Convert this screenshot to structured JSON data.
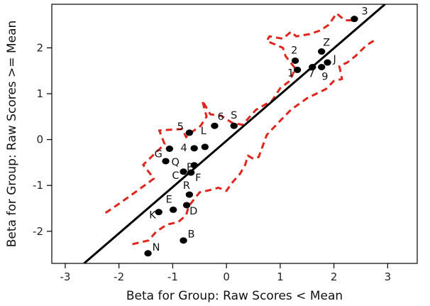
{
  "chart_data": {
    "type": "scatter",
    "xlabel": "Beta for Group: Raw Scores < Mean",
    "ylabel": "Beta for Group: Raw Scores >= Mean",
    "xlim": [
      -3.25,
      3.55
    ],
    "ylim": [
      -2.7,
      2.95
    ],
    "x_ticks": [
      -3,
      -2,
      -1,
      0,
      1,
      2,
      3
    ],
    "y_ticks": [
      -2,
      -1,
      0,
      1,
      2
    ],
    "grid": false,
    "legend": "none",
    "colors": {
      "points": "#000000",
      "fit_line": "#000000",
      "bounds": "#e0261c"
    },
    "points": [
      {
        "label": "3",
        "x": 2.38,
        "y": 2.63
      },
      {
        "label": "Z",
        "x": 1.77,
        "y": 1.92
      },
      {
        "label": "J",
        "x": 1.88,
        "y": 1.68
      },
      {
        "label": "2",
        "x": 1.28,
        "y": 1.72
      },
      {
        "label": "1",
        "x": 1.32,
        "y": 1.52
      },
      {
        "label": "7",
        "x": 1.6,
        "y": 1.58
      },
      {
        "label": "9",
        "x": 1.77,
        "y": 1.58
      },
      {
        "label": "6",
        "x": -0.22,
        "y": 0.3
      },
      {
        "label": "S",
        "x": 0.14,
        "y": 0.3
      },
      {
        "label": "5",
        "x": -0.69,
        "y": 0.15
      },
      {
        "label": "L",
        "x": -0.4,
        "y": -0.16
      },
      {
        "label": "4",
        "x": -0.6,
        "y": -0.19
      },
      {
        "label": "G",
        "x": -1.06,
        "y": -0.2
      },
      {
        "label": "Q",
        "x": -1.13,
        "y": -0.47
      },
      {
        "label": "P",
        "x": -0.6,
        "y": -0.56
      },
      {
        "label": "C",
        "x": -0.8,
        "y": -0.7
      },
      {
        "label": "F",
        "x": -0.66,
        "y": -0.72
      },
      {
        "label": "R",
        "x": -0.69,
        "y": -1.2
      },
      {
        "label": "E",
        "x": -0.99,
        "y": -1.53
      },
      {
        "label": "D",
        "x": -0.74,
        "y": -1.43
      },
      {
        "label": "K",
        "x": -1.26,
        "y": -1.58
      },
      {
        "label": "B",
        "x": -0.8,
        "y": -2.2
      },
      {
        "label": "N",
        "x": -1.46,
        "y": -2.48
      }
    ],
    "fit_line": [
      [
        -2.65,
        -2.7
      ],
      [
        2.95,
        2.95
      ]
    ],
    "upper_bound": [
      [
        -2.25,
        -1.6
      ],
      [
        -2.0,
        -1.4
      ],
      [
        -1.7,
        -1.15
      ],
      [
        -1.35,
        -0.85
      ],
      [
        -1.55,
        -0.55
      ],
      [
        -1.15,
        -0.1
      ],
      [
        -1.25,
        0.2
      ],
      [
        -0.82,
        0.23
      ],
      [
        -0.75,
        0.05
      ],
      [
        -0.72,
        0.1
      ],
      [
        -0.48,
        0.3
      ],
      [
        -0.37,
        0.5
      ],
      [
        -0.45,
        0.85
      ],
      [
        -0.3,
        0.55
      ],
      [
        -0.1,
        0.52
      ],
      [
        0.1,
        0.37
      ],
      [
        0.3,
        0.32
      ],
      [
        0.55,
        0.65
      ],
      [
        0.85,
        0.85
      ],
      [
        1.0,
        1.12
      ],
      [
        1.18,
        1.28
      ],
      [
        1.28,
        1.55
      ],
      [
        1.1,
        1.82
      ],
      [
        1.05,
        2.0
      ],
      [
        0.75,
        2.15
      ],
      [
        0.8,
        2.25
      ],
      [
        1.05,
        2.2
      ],
      [
        1.2,
        2.35
      ],
      [
        1.3,
        2.25
      ],
      [
        1.55,
        2.3
      ],
      [
        1.75,
        2.38
      ],
      [
        1.9,
        2.5
      ],
      [
        2.05,
        2.75
      ],
      [
        2.2,
        2.6
      ],
      [
        2.4,
        2.6
      ]
    ],
    "lower_bound": [
      [
        -1.75,
        -2.28
      ],
      [
        -1.45,
        -2.2
      ],
      [
        -1.3,
        -2.0
      ],
      [
        -1.1,
        -1.85
      ],
      [
        -0.9,
        -1.8
      ],
      [
        -0.75,
        -1.65
      ],
      [
        -0.7,
        -1.45
      ],
      [
        -0.6,
        -1.3
      ],
      [
        -0.5,
        -1.15
      ],
      [
        -0.3,
        -1.1
      ],
      [
        -0.15,
        -1.05
      ],
      [
        0.0,
        -1.12
      ],
      [
        0.1,
        -0.95
      ],
      [
        0.25,
        -0.75
      ],
      [
        0.35,
        -0.55
      ],
      [
        0.4,
        -0.35
      ],
      [
        0.5,
        -0.42
      ],
      [
        0.6,
        -0.38
      ],
      [
        0.75,
        0.1
      ],
      [
        0.95,
        0.35
      ],
      [
        1.2,
        0.65
      ],
      [
        1.5,
        0.9
      ],
      [
        1.85,
        1.1
      ],
      [
        2.0,
        1.28
      ],
      [
        2.15,
        1.32
      ],
      [
        2.1,
        1.6
      ],
      [
        2.25,
        1.68
      ],
      [
        2.4,
        1.82
      ],
      [
        2.6,
        2.05
      ],
      [
        2.8,
        2.2
      ]
    ]
  }
}
